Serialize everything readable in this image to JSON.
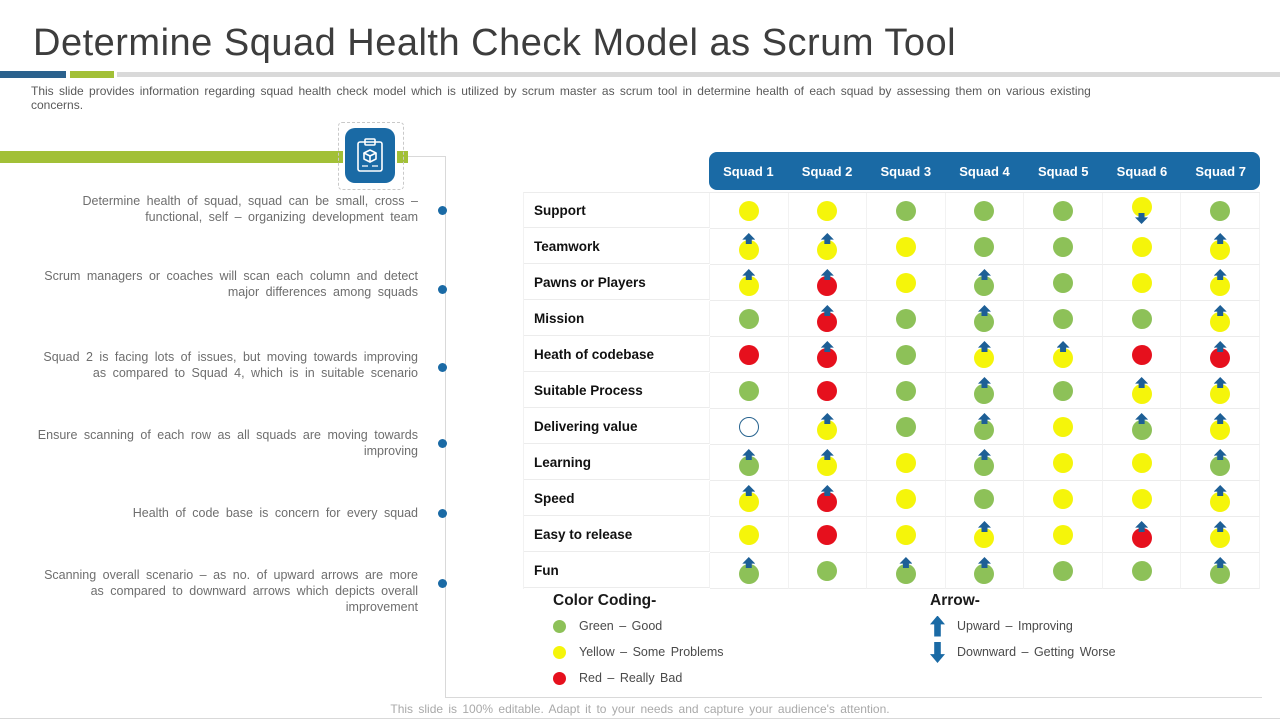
{
  "slide": {
    "title": "Determine Squad Health Check Model as Scrum Tool",
    "subtitle": "This slide provides information regarding squad health check model which is utilized by scrum master as scrum tool in determine health of each squad by assessing them on various existing concerns.",
    "footer": "This slide is 100% editable. Adapt it to your needs and capture your audience's attention."
  },
  "notes": [
    "Determine health of squad, squad can be small, cross – functional, self – organizing development team",
    "Scrum managers or coaches will scan each column and detect major differences among squads",
    "Squad 2 is facing lots of issues, but moving towards improving as compared to Squad 4, which is in suitable scenario",
    "Ensure scanning of each row as all squads are moving towards improving",
    "Health of code base is concern for every squad",
    "Scanning overall scenario – as no. of upward arrows are more as compared to downward arrows which depicts overall improvement"
  ],
  "table": {
    "columns": [
      "Squad 1",
      "Squad 2",
      "Squad 3",
      "Squad 4",
      "Squad 5",
      "Squad 6",
      "Squad 7"
    ],
    "rows": [
      {
        "label": "Support",
        "cells": [
          {
            "color": "yellow"
          },
          {
            "color": "yellow"
          },
          {
            "color": "green"
          },
          {
            "color": "green"
          },
          {
            "color": "green"
          },
          {
            "color": "yellow",
            "arrow": "down"
          },
          {
            "color": "green"
          }
        ]
      },
      {
        "label": "Teamwork",
        "cells": [
          {
            "color": "yellow",
            "arrow": "up"
          },
          {
            "color": "yellow",
            "arrow": "up"
          },
          {
            "color": "yellow"
          },
          {
            "color": "green"
          },
          {
            "color": "green"
          },
          {
            "color": "yellow"
          },
          {
            "color": "yellow",
            "arrow": "up"
          }
        ]
      },
      {
        "label": "Pawns or Players",
        "cells": [
          {
            "color": "yellow",
            "arrow": "up"
          },
          {
            "color": "red",
            "arrow": "up"
          },
          {
            "color": "yellow"
          },
          {
            "color": "green",
            "arrow": "up"
          },
          {
            "color": "green"
          },
          {
            "color": "yellow"
          },
          {
            "color": "yellow",
            "arrow": "up"
          }
        ]
      },
      {
        "label": "Mission",
        "cells": [
          {
            "color": "green"
          },
          {
            "color": "red",
            "arrow": "up"
          },
          {
            "color": "green"
          },
          {
            "color": "green",
            "arrow": "up"
          },
          {
            "color": "green"
          },
          {
            "color": "green"
          },
          {
            "color": "yellow",
            "arrow": "up"
          }
        ]
      },
      {
        "label": "Heath of codebase",
        "cells": [
          {
            "color": "red"
          },
          {
            "color": "red",
            "arrow": "up"
          },
          {
            "color": "green"
          },
          {
            "color": "yellow",
            "arrow": "up"
          },
          {
            "color": "yellow",
            "arrow": "up"
          },
          {
            "color": "red"
          },
          {
            "color": "red",
            "arrow": "up"
          }
        ]
      },
      {
        "label": "Suitable Process",
        "cells": [
          {
            "color": "green"
          },
          {
            "color": "red"
          },
          {
            "color": "green"
          },
          {
            "color": "green",
            "arrow": "up"
          },
          {
            "color": "green"
          },
          {
            "color": "yellow",
            "arrow": "up"
          },
          {
            "color": "yellow",
            "arrow": "up"
          }
        ]
      },
      {
        "label": "Delivering value",
        "cells": [
          {
            "color": "none"
          },
          {
            "color": "yellow",
            "arrow": "up"
          },
          {
            "color": "green"
          },
          {
            "color": "green",
            "arrow": "up"
          },
          {
            "color": "yellow"
          },
          {
            "color": "green",
            "arrow": "up"
          },
          {
            "color": "yellow",
            "arrow": "up"
          }
        ]
      },
      {
        "label": "Learning",
        "cells": [
          {
            "color": "green",
            "arrow": "up"
          },
          {
            "color": "yellow",
            "arrow": "up"
          },
          {
            "color": "yellow"
          },
          {
            "color": "green",
            "arrow": "up"
          },
          {
            "color": "yellow"
          },
          {
            "color": "yellow"
          },
          {
            "color": "green",
            "arrow": "up"
          }
        ]
      },
      {
        "label": "Speed",
        "cells": [
          {
            "color": "yellow",
            "arrow": "up"
          },
          {
            "color": "red",
            "arrow": "up"
          },
          {
            "color": "yellow"
          },
          {
            "color": "green"
          },
          {
            "color": "yellow"
          },
          {
            "color": "yellow"
          },
          {
            "color": "yellow",
            "arrow": "up"
          }
        ]
      },
      {
        "label": "Easy to release",
        "cells": [
          {
            "color": "yellow"
          },
          {
            "color": "red"
          },
          {
            "color": "yellow"
          },
          {
            "color": "yellow",
            "arrow": "up"
          },
          {
            "color": "yellow"
          },
          {
            "color": "red",
            "arrow": "up"
          },
          {
            "color": "yellow",
            "arrow": "up"
          }
        ]
      },
      {
        "label": "Fun",
        "cells": [
          {
            "color": "green",
            "arrow": "up"
          },
          {
            "color": "green"
          },
          {
            "color": "green",
            "arrow": "up"
          },
          {
            "color": "green",
            "arrow": "up"
          },
          {
            "color": "green"
          },
          {
            "color": "green"
          },
          {
            "color": "green",
            "arrow": "up"
          }
        ]
      }
    ]
  },
  "legend": {
    "color_title": "Color Coding-",
    "colors": [
      {
        "swatch": "green",
        "label": "Green – Good"
      },
      {
        "swatch": "yellow",
        "label": "Yellow – Some Problems"
      },
      {
        "swatch": "red",
        "label": "Red – Really Bad"
      }
    ],
    "arrow_title": "Arrow-",
    "arrows": [
      {
        "dir": "up",
        "label": "Upward – Improving"
      },
      {
        "dir": "down",
        "label": "Downward – Getting Worse"
      }
    ]
  },
  "colors": {
    "green": "#8DC158",
    "yellow": "#F5F50A",
    "red": "#E6101D",
    "none": "#FFFFFF",
    "header_blue": "#1A6AA5",
    "arrow_blue": "#1D5F96",
    "accent_green": "#A2C037",
    "divider_blue": "#2B618D",
    "line_gray": "#D9D9D9"
  }
}
